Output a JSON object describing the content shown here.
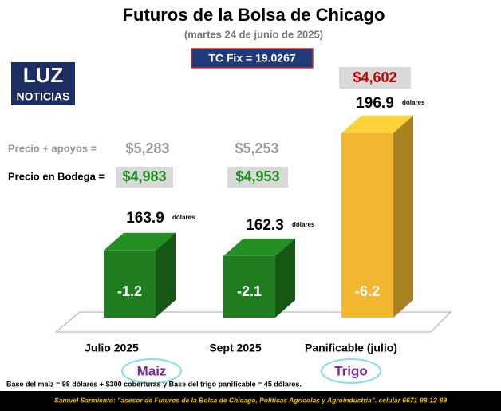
{
  "chart_data": {
    "type": "bar3d",
    "title": "Futuros de la Bolsa de Chicago",
    "subtitle": "(martes 24 de junio de 2025)",
    "categories": [
      "Julio 2025",
      "Sept 2025",
      "Panificable (julio)"
    ],
    "values": [
      163.9,
      162.3,
      196.9
    ],
    "unit": "dólares",
    "changes": [
      -1.2,
      -2.1,
      -6.2
    ],
    "colors": [
      "#1f7d1f",
      "#1f7d1f",
      "#f2b731"
    ],
    "ylim": [
      145,
      200
    ],
    "groups": [
      "Maiz",
      "Trigo"
    ]
  },
  "exchange_rate": "TC Fix = 19.0267",
  "wheat_price": "$4,602",
  "prices": {
    "support": {
      "label": "Precio + apoyos   =",
      "values": [
        "$5,283",
        "$5,253"
      ]
    },
    "warehouse": {
      "label": "Precio en Bodega =",
      "values": [
        "$4,983",
        "$4,953"
      ]
    }
  },
  "logo": {
    "top": "LUZ",
    "bottom": "NOTICIAS"
  },
  "note": "Base del maiz = 98 dólares + $300 coberturas y Base del trigo panificable = 45 dólares.",
  "footer": "Samuel Sarmiento: \"asesor de Futuros de la Bolsa de Chicago, Políticas Agrícolas y Agroindustria\". celular 6671-98-12-89"
}
